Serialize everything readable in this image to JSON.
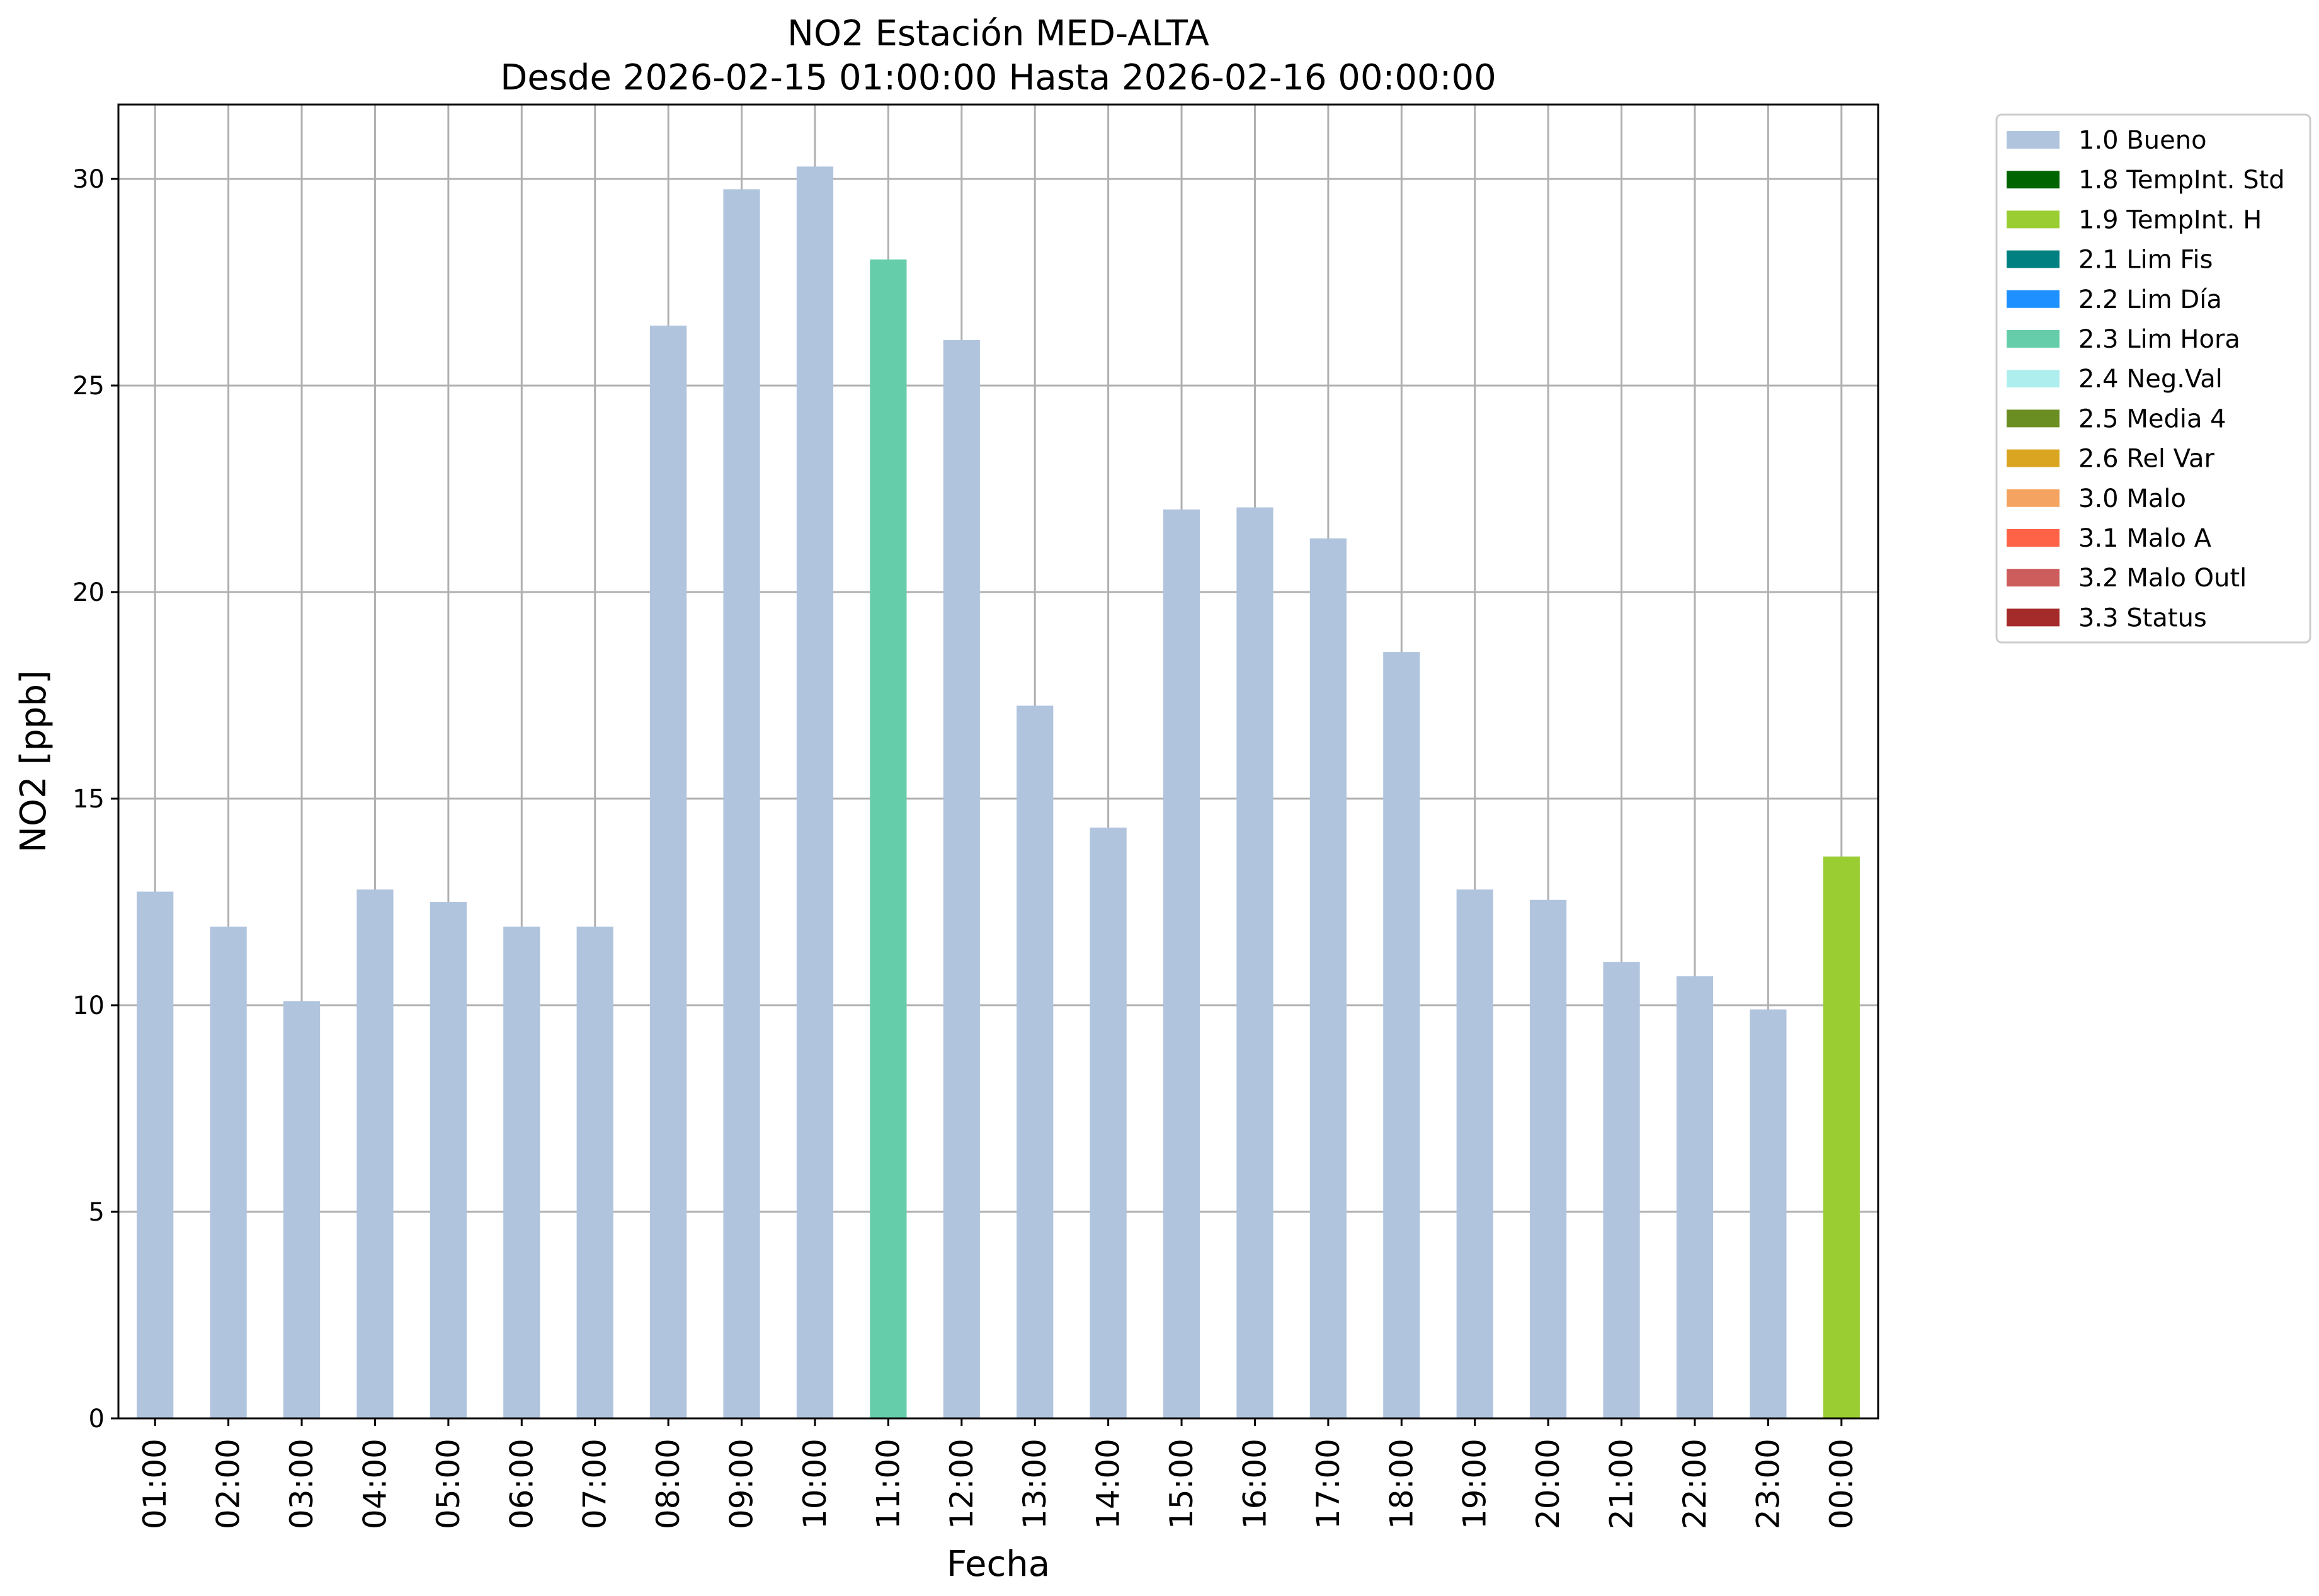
{
  "chart_data": {
    "type": "bar",
    "title": "NO2 Estación MED-ALTA",
    "subtitle": "Desde 2026-02-15 01:00:00 Hasta 2026-02-16 00:00:00",
    "xlabel": "Fecha",
    "ylabel": "NO2 [ppb]",
    "ylim": [
      0,
      31.8
    ],
    "yticks": [
      0,
      5,
      10,
      15,
      20,
      25,
      30
    ],
    "grid": true,
    "legend_position": "outside-top-right",
    "categories": [
      "01:00",
      "02:00",
      "03:00",
      "04:00",
      "05:00",
      "06:00",
      "07:00",
      "08:00",
      "09:00",
      "10:00",
      "11:00",
      "12:00",
      "13:00",
      "14:00",
      "15:00",
      "16:00",
      "17:00",
      "18:00",
      "19:00",
      "20:00",
      "21:00",
      "22:00",
      "23:00",
      "00:00"
    ],
    "values": [
      12.75,
      11.9,
      10.1,
      12.8,
      12.5,
      11.9,
      11.9,
      26.45,
      29.75,
      30.3,
      28.05,
      26.1,
      17.25,
      14.3,
      22.0,
      22.05,
      21.3,
      18.55,
      12.8,
      12.55,
      11.05,
      10.7,
      9.9,
      13.6
    ],
    "flags": [
      "1.0 Bueno",
      "1.0 Bueno",
      "1.0 Bueno",
      "1.0 Bueno",
      "1.0 Bueno",
      "1.0 Bueno",
      "1.0 Bueno",
      "1.0 Bueno",
      "1.0 Bueno",
      "1.0 Bueno",
      "2.3 Lim Hora",
      "1.0 Bueno",
      "1.0 Bueno",
      "1.0 Bueno",
      "1.0 Bueno",
      "1.0 Bueno",
      "1.0 Bueno",
      "1.0 Bueno",
      "1.0 Bueno",
      "1.0 Bueno",
      "1.0 Bueno",
      "1.0 Bueno",
      "1.0 Bueno",
      "1.9 TempInt. H"
    ],
    "legend": [
      {
        "label": "1.0 Bueno",
        "color": "#b0c4de"
      },
      {
        "label": "1.8 TempInt. Std",
        "color": "#006400"
      },
      {
        "label": "1.9 TempInt. H",
        "color": "#9acd32"
      },
      {
        "label": "2.1 Lim Fis",
        "color": "#008080"
      },
      {
        "label": "2.2 Lim Día",
        "color": "#1e90ff"
      },
      {
        "label": "2.3 Lim Hora",
        "color": "#66cdaa"
      },
      {
        "label": "2.4 Neg.Val",
        "color": "#afeeee"
      },
      {
        "label": "2.5 Media 4",
        "color": "#6b8e23"
      },
      {
        "label": "2.6 Rel Var",
        "color": "#daa520"
      },
      {
        "label": "3.0 Malo",
        "color": "#f4a460"
      },
      {
        "label": "3.1 Malo A",
        "color": "#ff6347"
      },
      {
        "label": "3.2 Malo Outl",
        "color": "#cd5c5c"
      },
      {
        "label": "3.3 Status",
        "color": "#a52a2a"
      }
    ]
  }
}
